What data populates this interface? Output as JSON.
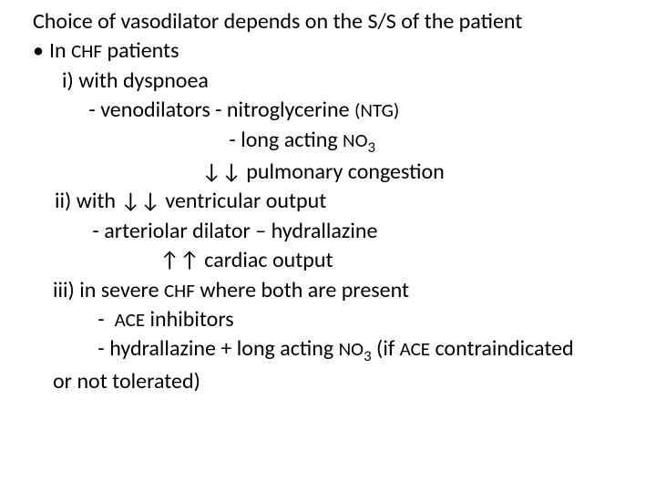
{
  "text_color": "#000000",
  "background_color": "#ffffff",
  "font_family": "Calibri",
  "base_fontsize": 24,
  "small_fontsize": 21,
  "lines": {
    "l1": "Choice of vasodilator depends on the S/S of the patient",
    "l2_bullet": "•",
    "l2a": "In ",
    "l2b": "CHF",
    "l2c": " patients",
    "l3": "i) with dyspnoea",
    "l4a": " - venodilators - nitroglycerine ",
    "l4b": "(NTG)",
    "l5a": " - long acting ",
    "l5b": "NO",
    "l5c": "3",
    "l6": " ↓↓ pulmonary congestion",
    "l7": "ii) with ↓↓ ventricular output",
    "l8": " - arteriolar dilator – hydrallazine",
    "l9": " ↑↑ cardiac output",
    "l10a": "iii) in severe ",
    "l10b": "CHF",
    "l10c": " where both are present",
    "l11a": " -  ",
    "l11b": "ACE",
    "l11c": " inhibitors",
    "l12a": " - hydrallazine + long acting ",
    "l12b": "NO",
    "l12c": "3",
    "l12d": " (if ",
    "l12e": "ACE",
    "l12f": " contraindicated",
    "l13": "or not tolerated)"
  }
}
